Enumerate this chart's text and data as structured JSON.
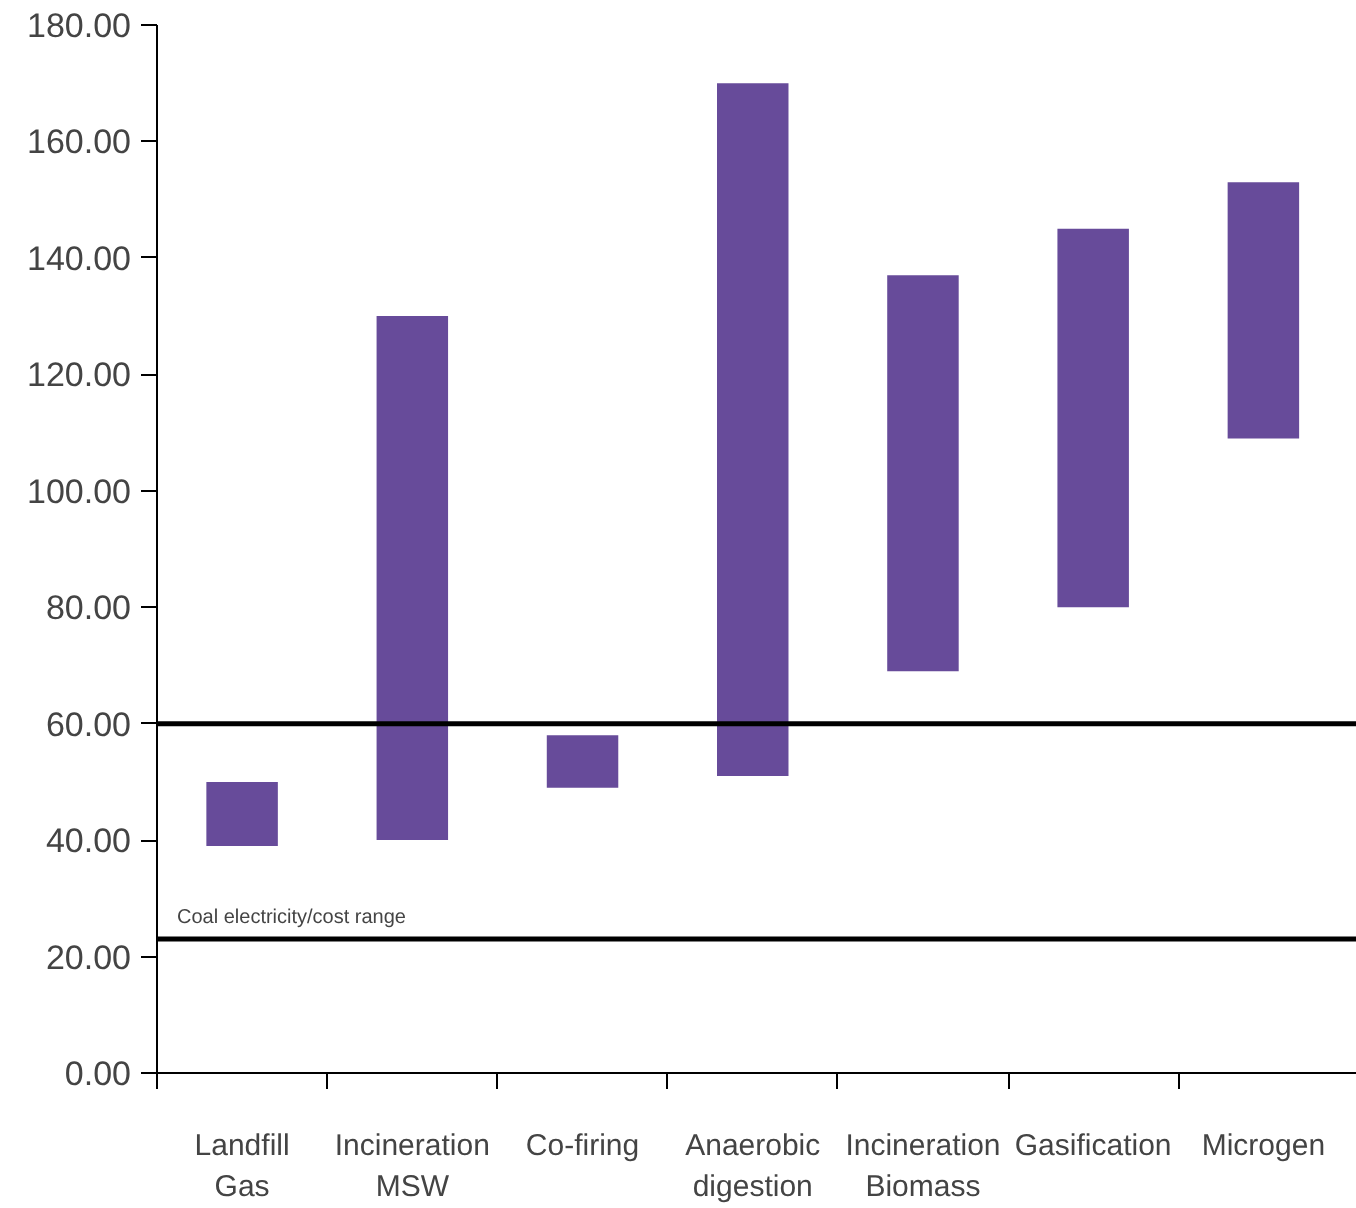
{
  "chart_data": {
    "type": "bar",
    "categories": [
      "Landfill\nGas",
      "Incineration\nMSW",
      "Co-firing",
      "Anaerobic\ndigestion",
      "Incineration\nBiomass",
      "Gasification",
      "Microgen"
    ],
    "base": [
      39,
      40,
      49,
      51,
      69,
      80,
      109
    ],
    "values": [
      11,
      90,
      9,
      119,
      68,
      65,
      44
    ],
    "color": "#674b9a",
    "ylim": [
      0,
      180
    ],
    "yticks": [
      {
        "value": 0,
        "label": "0.00"
      },
      {
        "value": 20,
        "label": "20.00"
      },
      {
        "value": 40,
        "label": "40.00"
      },
      {
        "value": 60,
        "label": "60.00"
      },
      {
        "value": 80,
        "label": "80.00"
      },
      {
        "value": 100,
        "label": "100.00"
      },
      {
        "value": 120,
        "label": "120.00"
      },
      {
        "value": 140,
        "label": "140.00"
      },
      {
        "value": 160,
        "label": "160.00"
      },
      {
        "value": 180,
        "label": "180.00"
      }
    ],
    "ref_lines": [
      {
        "axis": "y",
        "value": 60,
        "label": null,
        "color": "#000000"
      },
      {
        "axis": "y",
        "value": 23,
        "label": "Coal electricity/cost range",
        "color": "#000000"
      }
    ],
    "grid": false
  }
}
